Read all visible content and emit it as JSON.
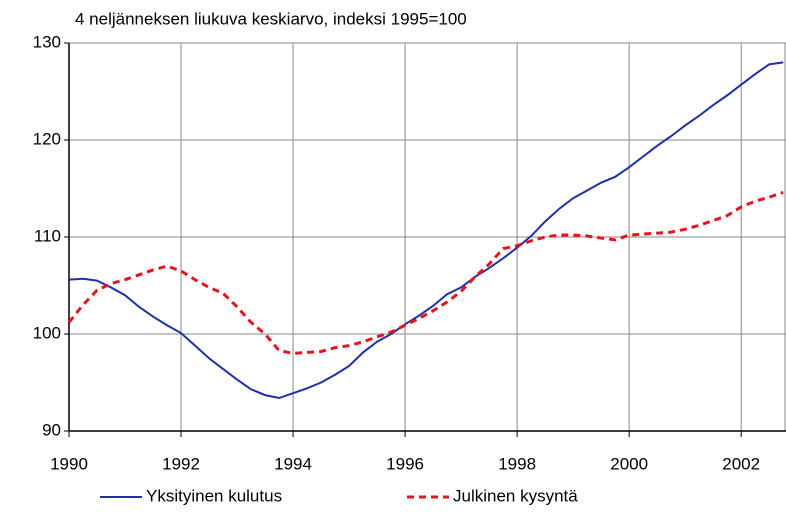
{
  "chart_data": {
    "type": "line",
    "title": "4 neljänneksen liukuva keskiarvo, indeksi 1995=100",
    "x": [
      1990,
      1990.25,
      1990.5,
      1990.75,
      1991,
      1991.25,
      1991.5,
      1991.75,
      1992,
      1992.25,
      1992.5,
      1992.75,
      1993,
      1993.25,
      1993.5,
      1993.75,
      1994,
      1994.25,
      1994.5,
      1994.75,
      1995,
      1995.25,
      1995.5,
      1995.75,
      1996,
      1996.25,
      1996.5,
      1996.75,
      1997,
      1997.25,
      1997.5,
      1997.75,
      1998,
      1998.25,
      1998.5,
      1998.75,
      1999,
      1999.25,
      1999.5,
      1999.75,
      2000,
      2000.25,
      2000.5,
      2000.75,
      2001,
      2001.25,
      2001.5,
      2001.75,
      2002,
      2002.25,
      2002.5,
      2002.75
    ],
    "series": [
      {
        "name": "Yksityinen kulutus",
        "color": "#1f2fa8",
        "dash": false,
        "values": [
          105.6,
          105.7,
          105.5,
          104.8,
          104.0,
          102.8,
          101.8,
          100.9,
          100.1,
          98.8,
          97.5,
          96.4,
          95.3,
          94.3,
          93.7,
          93.4,
          93.9,
          94.4,
          95.0,
          95.8,
          96.7,
          98.1,
          99.2,
          100.0,
          101.0,
          101.9,
          102.9,
          104.1,
          104.8,
          105.9,
          106.8,
          107.8,
          108.9,
          110.1,
          111.6,
          112.9,
          114.0,
          114.8,
          115.6,
          116.2,
          117.2,
          118.3,
          119.4,
          120.4,
          121.5,
          122.5,
          123.6,
          124.6,
          125.7,
          126.8,
          127.8,
          128.0
        ]
      },
      {
        "name": "Julkinen kysyntä",
        "color": "#e8141c",
        "dash": true,
        "values": [
          101.2,
          103.0,
          104.5,
          105.2,
          105.6,
          106.1,
          106.6,
          107.0,
          106.5,
          105.6,
          104.8,
          104.2,
          102.8,
          101.2,
          100.0,
          98.3,
          98.0,
          98.1,
          98.2,
          98.6,
          98.8,
          99.2,
          99.7,
          100.2,
          100.9,
          101.6,
          102.4,
          103.3,
          104.4,
          105.9,
          107.2,
          108.8,
          109.1,
          109.6,
          110.0,
          110.2,
          110.2,
          110.1,
          109.9,
          109.7,
          110.2,
          110.3,
          110.4,
          110.5,
          110.8,
          111.2,
          111.7,
          112.2,
          113.1,
          113.7,
          114.1,
          114.6
        ]
      }
    ],
    "xlim": [
      1990,
      2002.8
    ],
    "xticks": [
      1990,
      1992,
      1994,
      1996,
      1998,
      2000,
      2002
    ],
    "ylim": [
      90,
      130
    ],
    "yticks": [
      90,
      100,
      110,
      120,
      130
    ],
    "grid": true
  }
}
